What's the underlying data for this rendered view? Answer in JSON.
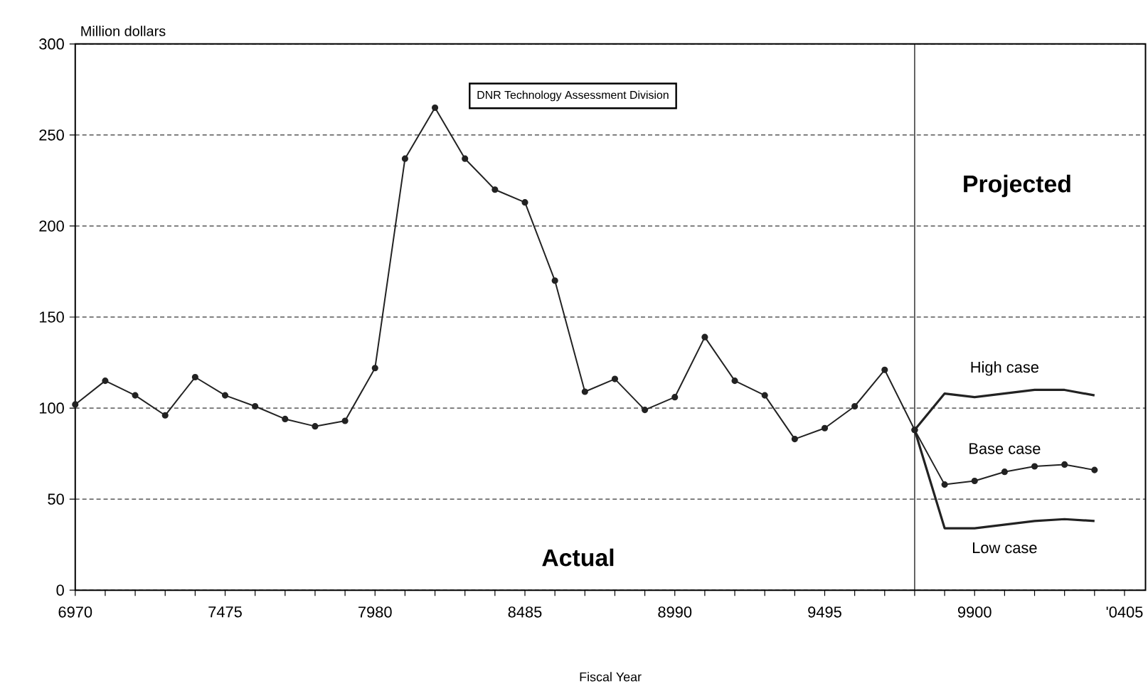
{
  "chart_data": {
    "type": "line",
    "xlabel": "Fiscal Year",
    "ylabel": "Million dollars",
    "annotations": [
      "DNR  Technology Assessment Division",
      "Projected",
      "Actual"
    ],
    "categories": [
      "6970",
      null,
      null,
      null,
      null,
      "7475",
      null,
      null,
      null,
      null,
      "7980",
      null,
      null,
      null,
      null,
      "8485",
      null,
      null,
      null,
      null,
      "8990",
      null,
      null,
      null,
      null,
      "9495",
      null,
      null,
      null,
      null,
      "9900",
      null,
      null,
      null,
      null,
      "'0405"
    ],
    "ylim": [
      0,
      300
    ],
    "yticks": [
      0,
      50,
      100,
      150,
      200,
      250,
      300
    ],
    "grid": "y",
    "series": [
      {
        "color": "#222222",
        "marker": "circle",
        "values": [
          102,
          115,
          107,
          96,
          117,
          107,
          101,
          94,
          90,
          93,
          122,
          237,
          265,
          237,
          220,
          213,
          170,
          109,
          116,
          99,
          106,
          139,
          115,
          107,
          83,
          89,
          101,
          121,
          88,
          null,
          null,
          null,
          null,
          null,
          null,
          null
        ]
      },
      {
        "name": "High case",
        "color": "#222222",
        "marker": "none",
        "values": [
          null,
          null,
          null,
          null,
          null,
          null,
          null,
          null,
          null,
          null,
          null,
          null,
          null,
          null,
          null,
          null,
          null,
          null,
          null,
          null,
          null,
          null,
          null,
          null,
          null,
          null,
          null,
          null,
          88,
          108,
          106,
          108,
          110,
          110,
          107,
          null
        ]
      },
      {
        "name": "Base case",
        "color": "#222222",
        "marker": "circle",
        "values": [
          null,
          null,
          null,
          null,
          null,
          null,
          null,
          null,
          null,
          null,
          null,
          null,
          null,
          null,
          null,
          null,
          null,
          null,
          null,
          null,
          null,
          null,
          null,
          null,
          null,
          null,
          null,
          null,
          88,
          58,
          60,
          65,
          68,
          69,
          66,
          null
        ]
      },
      {
        "name": "Low case",
        "color": "#222222",
        "marker": "none",
        "values": [
          null,
          null,
          null,
          null,
          null,
          null,
          null,
          null,
          null,
          null,
          null,
          null,
          null,
          null,
          null,
          null,
          null,
          null,
          null,
          null,
          null,
          null,
          null,
          null,
          null,
          null,
          null,
          null,
          88,
          34,
          34,
          36,
          38,
          39,
          38,
          null
        ]
      }
    ]
  }
}
